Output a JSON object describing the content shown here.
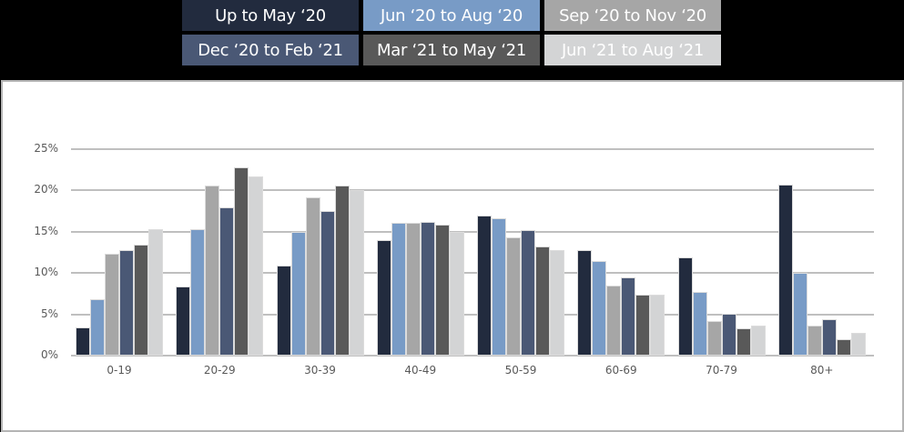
{
  "legend": [
    {
      "label": "Up to May ‘20",
      "color": "#222b3e"
    },
    {
      "label": "Jun ‘20 to Aug ‘20",
      "color": "#789bc6"
    },
    {
      "label": "Sep ‘20 to Nov ‘20",
      "color": "#a6a6a6"
    },
    {
      "label": "Dec ‘20 to Feb ‘21",
      "color": "#4a5875"
    },
    {
      "label": "Mar ‘21 to May ‘21",
      "color": "#595959"
    },
    {
      "label": "Jun ‘21 to Aug ‘21",
      "color": "#d3d4d5"
    }
  ],
  "chart_data": {
    "type": "bar",
    "title": "",
    "xlabel": "",
    "ylabel": "",
    "ylim": [
      0,
      25
    ],
    "y_ticks": [
      "0%",
      "5%",
      "10%",
      "15%",
      "20%",
      "25%"
    ],
    "grid": true,
    "legend_position": "top",
    "categories": [
      "0-19",
      "20-29",
      "30-39",
      "40-49",
      "50-59",
      "60-69",
      "70-79",
      "80+"
    ],
    "series": [
      {
        "name": "Up to May ‘20",
        "values": [
          3.4,
          8.3,
          10.9,
          14.0,
          16.9,
          12.8,
          11.9,
          20.7
        ]
      },
      {
        "name": "Jun ‘20 to Aug ‘20",
        "values": [
          6.8,
          15.3,
          14.9,
          16.0,
          16.6,
          11.4,
          7.7,
          10.0
        ]
      },
      {
        "name": "Sep ‘20 to Nov ‘20",
        "values": [
          12.3,
          20.6,
          19.1,
          16.0,
          14.3,
          8.5,
          4.2,
          3.6
        ]
      },
      {
        "name": "Dec ‘20 to Feb ‘21",
        "values": [
          12.8,
          17.9,
          17.5,
          16.1,
          15.2,
          9.4,
          5.1,
          4.4
        ]
      },
      {
        "name": "Mar ‘21 to May ‘21",
        "values": [
          13.4,
          22.8,
          20.6,
          15.8,
          13.2,
          7.4,
          3.3,
          2.0
        ]
      },
      {
        "name": "Jun ‘21 to Aug ‘21",
        "values": [
          15.3,
          21.7,
          20.0,
          15.0,
          12.8,
          7.4,
          3.6,
          2.8
        ]
      }
    ]
  }
}
